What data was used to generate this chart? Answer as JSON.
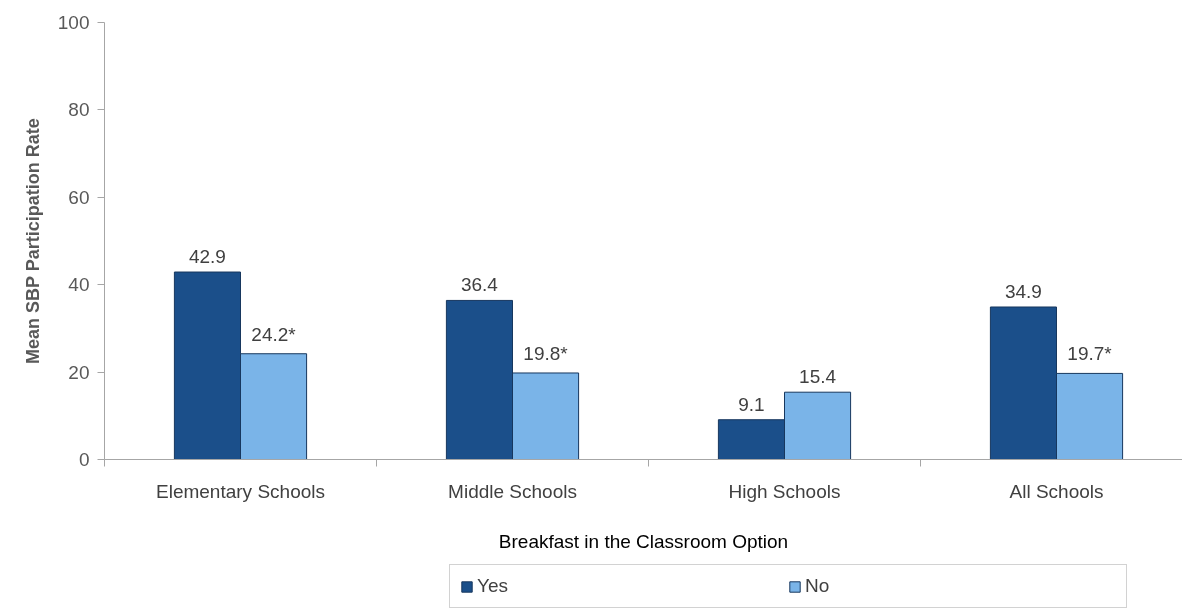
{
  "chart_data": {
    "type": "bar",
    "categories": [
      "Elementary Schools",
      "Middle Schools",
      "High Schools",
      "All Schools"
    ],
    "xlabel": "Breakfast in the Classroom Option",
    "ylabel": "Mean SBP Participation Rate",
    "ylim": [
      0,
      100
    ],
    "yticks": [
      0,
      20,
      40,
      60,
      80,
      100
    ],
    "grid": false,
    "legend": "bottom",
    "series": [
      {
        "name": "Yes",
        "color": "#1b4f8a",
        "values": [
          42.9,
          36.4,
          9.1,
          34.9
        ],
        "value_labels": [
          "42.9",
          "36.4",
          "9.1",
          "34.9"
        ]
      },
      {
        "name": "No",
        "color": "#7ab4e8",
        "values": [
          24.2,
          19.8,
          15.4,
          19.7
        ],
        "value_labels": [
          "24.2*",
          "19.8*",
          "15.4",
          "19.7*"
        ]
      }
    ]
  }
}
